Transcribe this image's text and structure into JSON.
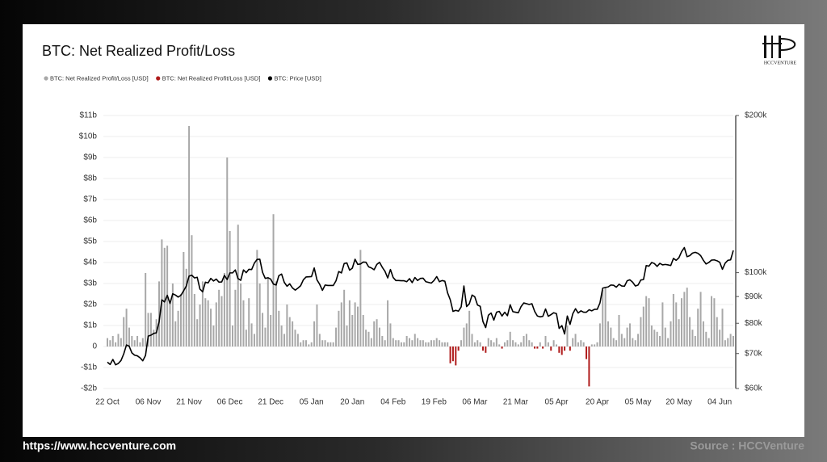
{
  "logo": "HCCVENTURE",
  "footer": {
    "url": "https://www.hccventure.com",
    "source": "Source : HCCVenture"
  },
  "chart_data": {
    "type": "bar",
    "title": "BTC: Net Realized Profit/Loss",
    "categories": [
      "22 Oct",
      null,
      null,
      null,
      null,
      null,
      null,
      null,
      null,
      null,
      null,
      null,
      null,
      null,
      null,
      "06 Nov",
      null,
      null,
      null,
      null,
      null,
      null,
      null,
      null,
      null,
      null,
      null,
      null,
      null,
      null,
      "21 Nov",
      null,
      null,
      null,
      null,
      null,
      null,
      null,
      null,
      null,
      null,
      null,
      null,
      null,
      null,
      "06 Dec",
      null,
      null,
      null,
      null,
      null,
      null,
      null,
      null,
      null,
      null,
      null,
      null,
      null,
      null,
      "21 Dec",
      null,
      null,
      null,
      null,
      null,
      null,
      null,
      null,
      null,
      null,
      null,
      null,
      null,
      null,
      "05 Jan",
      null,
      null,
      null,
      null,
      null,
      null,
      null,
      null,
      null,
      null,
      null,
      null,
      null,
      null,
      "20 Jan",
      null,
      null,
      null,
      null,
      null,
      null,
      null,
      null,
      null,
      null,
      null,
      null,
      null,
      null,
      "04 Feb",
      null,
      null,
      null,
      null,
      null,
      null,
      null,
      null,
      null,
      null,
      null,
      null,
      null,
      null,
      "19 Feb",
      null,
      null,
      null,
      null,
      null,
      null,
      null,
      null,
      null,
      null,
      null,
      null,
      null,
      null,
      "06 Mar",
      null,
      null,
      null,
      null,
      null,
      null,
      null,
      null,
      null,
      null,
      null,
      null,
      null,
      null,
      "21 Mar",
      null,
      null,
      null,
      null,
      null,
      null,
      null,
      null,
      null,
      null,
      null,
      null,
      null,
      null,
      "05 Apr",
      null,
      null,
      null,
      null,
      null,
      null,
      null,
      null,
      null,
      null,
      null,
      null,
      null,
      null,
      "20 Apr",
      null,
      null,
      null,
      null,
      null,
      null,
      null,
      null,
      null,
      null,
      null,
      null,
      null,
      null,
      "05 May",
      null,
      null,
      null,
      null,
      null,
      null,
      null,
      null,
      null,
      null,
      null,
      null,
      null,
      null,
      "20 May",
      null,
      null,
      null,
      null,
      null,
      null,
      null,
      null,
      null,
      null,
      null,
      null,
      null,
      null,
      "04 Jun",
      null,
      null,
      null,
      null,
      null
    ],
    "series": [
      {
        "name": "BTC: Net Realized Profit/Loss [USD]",
        "color": "#a8a8a8",
        "values": [
          0.4,
          0.3,
          0.5,
          0.2,
          0.6,
          0.4,
          1.4,
          1.8,
          0.9,
          0.5,
          0.3,
          0.5,
          0.2,
          0.4,
          3.5,
          1.6,
          1.6,
          0.8,
          1.3,
          3.1,
          5.1,
          4.7,
          4.8,
          2.1,
          3.0,
          1.2,
          1.7,
          2.5,
          4.5,
          3.7,
          10.5,
          5.3,
          2.5,
          1.3,
          2.0,
          3.1,
          2.3,
          2.2,
          1.8,
          1.0,
          2.1,
          2.7,
          2.4,
          3.5,
          9.0,
          5.5,
          1.0,
          2.7,
          5.8,
          3.0,
          2.2,
          0.8,
          2.3,
          1.1,
          0.6,
          4.6,
          3.0,
          1.6,
          0.9,
          3.3,
          1.5,
          6.3,
          3.1,
          1.7,
          1.0,
          0.6,
          2.0,
          1.4,
          1.2,
          0.8,
          0.6,
          0.2,
          0.3,
          0.3,
          0.1,
          0.2,
          1.2,
          2.0,
          0.6,
          0.3,
          0.3,
          0.2,
          0.2,
          0.2,
          0.9,
          1.7,
          2.1,
          2.7,
          1.0,
          2.2,
          1.5,
          2.1,
          1.9,
          4.6,
          1.5,
          0.8,
          0.7,
          0.4,
          1.2,
          1.3,
          0.9,
          0.5,
          0.3,
          2.2,
          1.1,
          0.4,
          0.3,
          0.3,
          0.2,
          0.2,
          0.5,
          0.4,
          0.3,
          0.6,
          0.4,
          0.3,
          0.3,
          0.2,
          0.2,
          0.3,
          0.3,
          0.4,
          0.3,
          0.2,
          0.2,
          0.2,
          null,
          null,
          null,
          null,
          0.3,
          0.9,
          1.1,
          1.7,
          0.6,
          0.2,
          0.3,
          0.2,
          null,
          null,
          0.4,
          0.3,
          0.2,
          0.4,
          0.1,
          null,
          0.2,
          0.3,
          0.7,
          0.3,
          0.2,
          0.1,
          0.2,
          0.5,
          0.6,
          0.3,
          0.2,
          null,
          null,
          0.2,
          null,
          0.5,
          0.2,
          null,
          0.3,
          0.1,
          null,
          null,
          null,
          1.0,
          null,
          0.4,
          0.6,
          0.2,
          0.3,
          0.2,
          null,
          null,
          0.1,
          0.1,
          0.2,
          1.1,
          2.7,
          2.8,
          1.2,
          0.9,
          0.4,
          0.3,
          1.5,
          0.6,
          0.4,
          0.9,
          1.1,
          0.4,
          0.3,
          0.6,
          1.4,
          1.9,
          2.4,
          2.3,
          1.0,
          0.8,
          0.7,
          0.5,
          2.1,
          0.9,
          0.4,
          1.2,
          2.5,
          2.1,
          1.3,
          2.3,
          2.6,
          2.8,
          1.4,
          0.8,
          0.5,
          1.8,
          2.6,
          1.2,
          0.7,
          0.4,
          2.4,
          2.3,
          1.4,
          0.8,
          1.8,
          0.3,
          0.4,
          0.6,
          0.5
        ]
      },
      {
        "name": "BTC: Net Realized Profit/Loss [USD]",
        "color": "#b01c1c",
        "values": [
          null,
          null,
          null,
          null,
          null,
          null,
          null,
          null,
          null,
          null,
          null,
          null,
          null,
          null,
          null,
          null,
          null,
          null,
          null,
          null,
          null,
          null,
          null,
          null,
          null,
          null,
          null,
          null,
          null,
          null,
          null,
          null,
          null,
          null,
          null,
          null,
          null,
          null,
          null,
          null,
          null,
          null,
          null,
          null,
          null,
          null,
          null,
          null,
          null,
          null,
          null,
          null,
          null,
          null,
          null,
          null,
          null,
          null,
          null,
          null,
          null,
          null,
          null,
          null,
          null,
          null,
          null,
          null,
          null,
          null,
          null,
          null,
          null,
          null,
          null,
          null,
          null,
          null,
          null,
          null,
          null,
          null,
          null,
          null,
          null,
          null,
          null,
          null,
          null,
          null,
          null,
          null,
          null,
          null,
          null,
          null,
          null,
          null,
          null,
          null,
          null,
          null,
          null,
          null,
          null,
          null,
          null,
          null,
          null,
          null,
          null,
          null,
          null,
          null,
          null,
          null,
          null,
          null,
          null,
          null,
          null,
          null,
          null,
          null,
          null,
          null,
          -0.8,
          -0.7,
          -0.9,
          -0.2,
          null,
          null,
          null,
          null,
          null,
          null,
          null,
          null,
          -0.2,
          -0.3,
          null,
          null,
          null,
          null,
          null,
          -0.1,
          null,
          null,
          null,
          null,
          null,
          null,
          null,
          null,
          null,
          null,
          null,
          -0.1,
          -0.1,
          null,
          -0.1,
          null,
          null,
          -0.2,
          null,
          null,
          -0.3,
          -0.4,
          -0.2,
          null,
          -0.2,
          null,
          null,
          null,
          null,
          null,
          -0.6,
          -1.9,
          null,
          null,
          null,
          null,
          null,
          null,
          null,
          null,
          null,
          null,
          null,
          null,
          null,
          null,
          null,
          null,
          null,
          null,
          null,
          null,
          null,
          null,
          null,
          null,
          null,
          null,
          null,
          null,
          null,
          null,
          null,
          null,
          null,
          null,
          null,
          null,
          null,
          null,
          null,
          null,
          null,
          null,
          null,
          null,
          null,
          null,
          null,
          null,
          null,
          null,
          null,
          null,
          null
        ]
      },
      {
        "name": "BTC: Price [USD]",
        "color": "#000000",
        "type": "line",
        "axis": "y2",
        "values": [
          67.4,
          66.7,
          68.2,
          66.6,
          67.0,
          67.9,
          69.9,
          72.7,
          72.3,
          70.2,
          69.5,
          69.3,
          68.7,
          67.8,
          69.4,
          75.6,
          75.9,
          76.5,
          76.7,
          80.5,
          88.7,
          87.9,
          90.5,
          87.3,
          91.1,
          90.6,
          89.8,
          90.5,
          92.3,
          94.3,
          98.5,
          98.9,
          97.7,
          98.0,
          93.0,
          91.9,
          95.9,
          95.6,
          97.5,
          96.4,
          97.2,
          95.9,
          96.0,
          98.8,
          97.0,
          99.9,
          99.9,
          101.2,
          97.4,
          96.7,
          101.2,
          100.0,
          101.5,
          101.4,
          104.3,
          106.0,
          106.1,
          100.2,
          97.5,
          97.8,
          97.2,
          95.1,
          94.7,
          98.7,
          99.4,
          95.8,
          94.2,
          95.2,
          93.5,
          92.6,
          93.4,
          94.4,
          96.9,
          98.1,
          98.2,
          98.3,
          102.1,
          96.9,
          95.0,
          92.5,
          94.7,
          94.5,
          94.5,
          94.5,
          96.5,
          100.5,
          99.9,
          104.1,
          104.4,
          101.1,
          102.0,
          106.1,
          103.7,
          103.9,
          104.8,
          104.7,
          102.6,
          102.1,
          101.3,
          103.7,
          104.7,
          102.4,
          100.6,
          97.7,
          101.4,
          97.9,
          96.6,
          96.6,
          96.5,
          96.5,
          96.1,
          97.4,
          95.7,
          97.9,
          96.6,
          97.5,
          97.6,
          96.1,
          95.8,
          95.5,
          96.6,
          98.3,
          96.1,
          96.6,
          96.3,
          91.5,
          88.7,
          84.3,
          84.7,
          84.4,
          86.0,
          94.3,
          86.1,
          87.2,
          90.6,
          89.9,
          86.7,
          86.2,
          80.6,
          78.5,
          82.9,
          83.7,
          81.1,
          84.0,
          84.3,
          82.6,
          84.0,
          82.7,
          86.8,
          84.2,
          84.0,
          83.8,
          86.1,
          87.5,
          87.2,
          86.9,
          87.2,
          84.3,
          82.6,
          82.3,
          82.5,
          85.2,
          82.5,
          83.1,
          83.8,
          83.5,
          78.2,
          79.2,
          76.3,
          82.6,
          79.6,
          83.4,
          85.3,
          83.7,
          84.5,
          84.0,
          84.0,
          84.9,
          84.5,
          85.1,
          85.1,
          87.5,
          93.4,
          93.7,
          93.9,
          94.7,
          94.6,
          93.8,
          95.0,
          94.3,
          94.2,
          96.5,
          96.9,
          95.9,
          94.3,
          94.7,
          96.8,
          97.0,
          103.2,
          102.9,
          104.6,
          104.1,
          102.8,
          104.2,
          103.5,
          103.7,
          103.5,
          103.2,
          106.5,
          105.6,
          106.8,
          109.7,
          111.7,
          107.3,
          107.8,
          109.0,
          109.4,
          108.9,
          107.8,
          105.6,
          103.9,
          104.6,
          105.7,
          105.8,
          105.4,
          104.7,
          101.5,
          104.3,
          105.6,
          105.8,
          110.3
        ]
      }
    ],
    "ylim": [
      -2,
      11
    ],
    "yticks": [
      {
        "value": -2,
        "label": "-$2b"
      },
      {
        "value": -1,
        "label": "-$1b"
      },
      0,
      {
        "value": 1,
        "label": "$1b"
      },
      {
        "value": 2,
        "label": "$2b"
      },
      {
        "value": 3,
        "label": "$3b"
      },
      {
        "value": 4,
        "label": "$4b"
      },
      {
        "value": 5,
        "label": "$5b"
      },
      {
        "value": 6,
        "label": "$6b"
      },
      {
        "value": 7,
        "label": "$7b"
      },
      {
        "value": 8,
        "label": "$8b"
      },
      {
        "value": 9,
        "label": "$9b"
      },
      {
        "value": 10,
        "label": "$10b"
      },
      {
        "value": 11,
        "label": "$11b"
      }
    ],
    "y2lim": [
      60,
      200
    ],
    "y2log": true,
    "y2ticks": [
      {
        "value": 60,
        "label": "$60k"
      },
      {
        "value": 70,
        "label": "$70k"
      },
      {
        "value": 80,
        "label": "$80k"
      },
      {
        "value": 90,
        "label": "$90k"
      },
      {
        "value": 100,
        "label": "$100k"
      },
      {
        "value": 200,
        "label": "$200k"
      }
    ],
    "grid": true,
    "legend": "top-left"
  }
}
